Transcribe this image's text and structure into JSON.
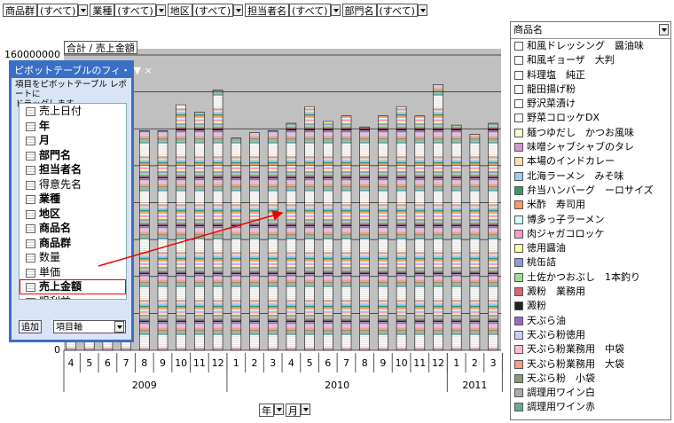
{
  "filters": [
    {
      "label": "商品群",
      "value": "(すべて)"
    },
    {
      "label": "業種",
      "value": "(すべて)"
    },
    {
      "label": "地区",
      "value": "(すべて)"
    },
    {
      "label": "担当者名",
      "value": "(すべて)"
    },
    {
      "label": "部門名",
      "value": "(すべて)"
    }
  ],
  "chart_data": {
    "type": "bar",
    "title": "合計 / 売上金額",
    "categories": [
      "4",
      "5",
      "6",
      "7",
      "8",
      "9",
      "10",
      "11",
      "12",
      "1",
      "2",
      "3",
      "4",
      "5",
      "6",
      "7",
      "8",
      "9",
      "10",
      "11",
      "12",
      "1",
      "2",
      "3"
    ],
    "x_groups": [
      {
        "label": "2009",
        "count": 9
      },
      {
        "label": "2010",
        "count": 12
      },
      {
        "label": "2011",
        "count": 3
      }
    ],
    "values": [
      108000000,
      112000000,
      120000000,
      116000000,
      119000000,
      119000000,
      133000000,
      129000000,
      141000000,
      115000000,
      118000000,
      119000000,
      123000000,
      132000000,
      124000000,
      127000000,
      121000000,
      127000000,
      132000000,
      127000000,
      144000000,
      122000000,
      117000000,
      123000000
    ],
    "ylim": [
      0,
      160000000
    ],
    "yticks": [
      0,
      20000000,
      40000000,
      60000000,
      80000000,
      100000000,
      120000000,
      140000000,
      160000000
    ],
    "grid": true
  },
  "axis_buttons": [
    "年",
    "月"
  ],
  "legend": {
    "title": "商品名",
    "items": [
      {
        "name": "和風ドレッシング　醤油味",
        "color": "#ffffff"
      },
      {
        "name": "和風ギョーザ　大判",
        "color": "#ffffff"
      },
      {
        "name": "料理塩　純正",
        "color": "#ffffff"
      },
      {
        "name": "龍田揚げ粉",
        "color": "#ffffff"
      },
      {
        "name": "野沢菜漬け",
        "color": "#ffffff"
      },
      {
        "name": "野菜コロッケDX",
        "color": "#ffffff"
      },
      {
        "name": "麺つゆだし　かつお風味",
        "color": "#ffffcc"
      },
      {
        "name": "味噌シャブシャブのタレ",
        "color": "#cc99cc"
      },
      {
        "name": "本場のインドカレー",
        "color": "#ffe0b0"
      },
      {
        "name": "北海ラーメン　みそ味",
        "color": "#99ccff"
      },
      {
        "name": "弁当ハンバーグ　ーロサイズ",
        "color": "#339966"
      },
      {
        "name": "米酢　寿司用",
        "color": "#ff9966"
      },
      {
        "name": "博多っ子ラーメン",
        "color": "#ccffff"
      },
      {
        "name": "肉ジャガコロッケ",
        "color": "#ff99cc"
      },
      {
        "name": "徳用醤油",
        "color": "#ffff99"
      },
      {
        "name": "桃缶詰",
        "color": "#8899dd"
      },
      {
        "name": "土佐かつおぶし　1本釣り",
        "color": "#99dd99"
      },
      {
        "name": "澱粉　業務用",
        "color": "#dd6677"
      },
      {
        "name": "澱粉",
        "color": "#222222"
      },
      {
        "name": "天ぷら油",
        "color": "#9966cc"
      },
      {
        "name": "天ぷら粉徳用",
        "color": "#ccccff"
      },
      {
        "name": "天ぷら粉業務用　中袋",
        "color": "#ffbbcc"
      },
      {
        "name": "天ぷら粉業務用　大袋",
        "color": "#ff9988"
      },
      {
        "name": "天ぷら粉　小袋",
        "color": "#889977"
      },
      {
        "name": "調理用ワイン白",
        "color": "#aaaaaa"
      },
      {
        "name": "調理用ワイン赤",
        "color": "#66aa99"
      }
    ]
  },
  "pivot_panel": {
    "title": "ピボットテーブルのフィ・",
    "hint": [
      "項目をピボットテーブル レポートに",
      "ドラッグします"
    ],
    "fields": [
      {
        "label": "売上日付",
        "bold": false
      },
      {
        "label": "年",
        "bold": true
      },
      {
        "label": "月",
        "bold": true
      },
      {
        "label": "部門名",
        "bold": true
      },
      {
        "label": "担当者名",
        "bold": true
      },
      {
        "label": "得意先名",
        "bold": false
      },
      {
        "label": "業種",
        "bold": true
      },
      {
        "label": "地区",
        "bold": true
      },
      {
        "label": "商品名",
        "bold": true
      },
      {
        "label": "商品群",
        "bold": true
      },
      {
        "label": "数量",
        "bold": false
      },
      {
        "label": "単価",
        "bold": false
      },
      {
        "label": "売上金額",
        "bold": true
      },
      {
        "label": "粗利益",
        "bold": false
      }
    ],
    "button": "追加",
    "area": "項目軸"
  }
}
